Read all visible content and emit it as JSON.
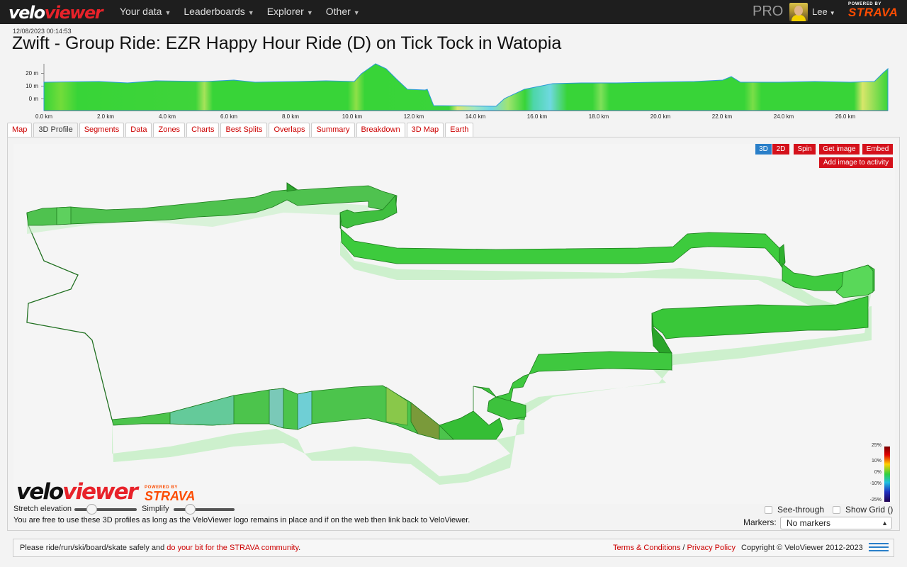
{
  "nav": {
    "logo_part1": "velo",
    "logo_part2": "viewer",
    "menu": [
      "Your data",
      "Leaderboards",
      "Explorer",
      "Other"
    ],
    "pro_label": "PRO",
    "user_name": "Lee",
    "powered_by": "POWERED BY",
    "strava": "STRAVA"
  },
  "activity": {
    "date": "12/08/2023 00:14:53",
    "title": "Zwift - Group Ride: EZR Happy Hour Ride (D) on Tick Tock in Watopia"
  },
  "elevation": {
    "y_ticks": [
      "20 m",
      "10 m",
      "0 m"
    ],
    "x_ticks": [
      "0.0 km",
      "2.0 km",
      "4.0 km",
      "6.0 km",
      "8.0 km",
      "10.0 km",
      "12.0 km",
      "14.0 km",
      "16.0 km",
      "18.0 km",
      "20.0 km",
      "22.0 km",
      "24.0 km",
      "26.0 km"
    ]
  },
  "tabs": [
    "Map",
    "3D Profile",
    "Segments",
    "Data",
    "Zones",
    "Charts",
    "Best Splits",
    "Overlaps",
    "Summary",
    "Breakdown",
    "3D Map",
    "Earth"
  ],
  "active_tab": "3D Profile",
  "view_buttons": {
    "b3d": "3D",
    "b2d": "2D",
    "spin": "Spin",
    "get_image": "Get image",
    "embed": "Embed",
    "add_image": "Add image to activity"
  },
  "gradient_legend": [
    "25%",
    "10%",
    "0%",
    "-10%",
    "-25%"
  ],
  "controls": {
    "stretch": "Stretch elevation",
    "simplify": "Simplify",
    "see_through": "See-through",
    "show_grid": "Show Grid ()",
    "markers_label": "Markers:",
    "markers_value": "No markers",
    "note": "You are free to use these 3D profiles as long as the VeloViewer logo remains in place and if on the web then link back to VeloViewer."
  },
  "footer": {
    "left_text": "Please ride/run/ski/board/skate safely and ",
    "left_link": "do your bit for the STRAVA community",
    "left_end": ".",
    "terms": "Terms & Conditions",
    "sep": " / ",
    "privacy": "Privacy Policy",
    "copyright": "Copyright © VeloViewer 2012-2023"
  },
  "colors": {
    "accent_red": "#d4111b",
    "strava_orange": "#fc4c02",
    "route_green": "#3ad43a"
  }
}
